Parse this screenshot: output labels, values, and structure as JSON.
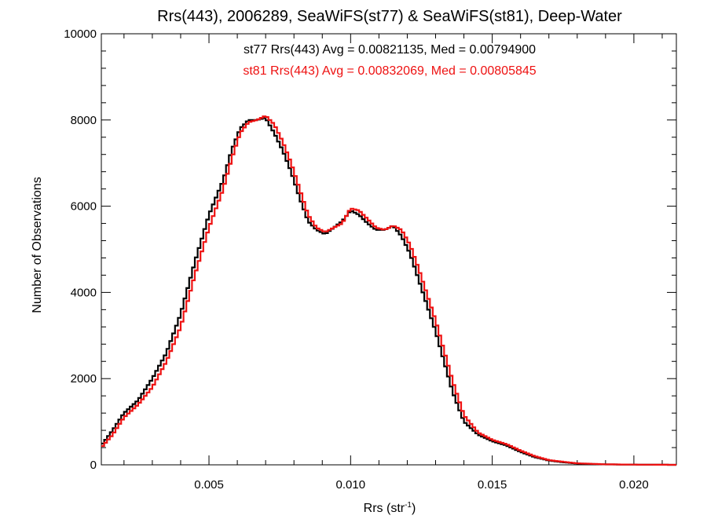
{
  "chart_data": {
    "type": "line",
    "step": true,
    "title": "Rrs(443), 2006289, SeaWiFS(st77) & SeaWiFS(st81), Deep-Water",
    "xlabel": "Rrs (str",
    "xlabel_sup": "-1",
    "xlabel_end": ")",
    "ylabel": "Number of Observations",
    "xlim": [
      0.0012,
      0.0215
    ],
    "ylim": [
      0,
      10000
    ],
    "x_ticks": [
      0.005,
      0.01,
      0.015,
      0.02
    ],
    "x_tick_labels": [
      "0.005",
      "0.010",
      "0.015",
      "0.020"
    ],
    "y_ticks": [
      0,
      2000,
      4000,
      6000,
      8000,
      10000
    ],
    "y_tick_labels": [
      "0",
      "2000",
      "4000",
      "6000",
      "8000",
      "10000"
    ],
    "annotations": [
      {
        "text": "st77 Rrs(443) Avg = 0.00821135, Med = 0.00794900",
        "color": "#000000"
      },
      {
        "text": "st81 Rrs(443) Avg = 0.00832069, Med = 0.00805845",
        "color": "#ee1111"
      }
    ],
    "series": [
      {
        "name": "st77",
        "color": "#000000",
        "x": [
          0.0012,
          0.0016,
          0.002,
          0.0025,
          0.003,
          0.0035,
          0.004,
          0.0045,
          0.005,
          0.0055,
          0.0058,
          0.0061,
          0.0064,
          0.0067,
          0.007,
          0.0073,
          0.0076,
          0.0079,
          0.0082,
          0.0085,
          0.0088,
          0.0091,
          0.0094,
          0.0097,
          0.01,
          0.0103,
          0.0106,
          0.0109,
          0.0112,
          0.0115,
          0.0118,
          0.0121,
          0.0124,
          0.0127,
          0.013,
          0.0133,
          0.0136,
          0.014,
          0.0145,
          0.015,
          0.0155,
          0.016,
          0.0165,
          0.017,
          0.0175,
          0.018,
          0.019,
          0.02,
          0.0215
        ],
        "y": [
          450,
          800,
          1200,
          1500,
          2000,
          2600,
          3500,
          4700,
          5800,
          6600,
          7300,
          7800,
          8000,
          8000,
          8050,
          7700,
          7300,
          6800,
          6200,
          5650,
          5450,
          5350,
          5500,
          5650,
          5900,
          5800,
          5600,
          5450,
          5450,
          5550,
          5300,
          4900,
          4300,
          3700,
          3100,
          2400,
          1700,
          1000,
          700,
          550,
          450,
          300,
          180,
          100,
          60,
          30,
          10,
          5,
          0
        ]
      },
      {
        "name": "st81",
        "color": "#ee1111",
        "x": [
          0.0012,
          0.0016,
          0.002,
          0.0025,
          0.003,
          0.0035,
          0.004,
          0.0045,
          0.005,
          0.0055,
          0.0058,
          0.0061,
          0.0064,
          0.0067,
          0.007,
          0.0073,
          0.0076,
          0.0079,
          0.0082,
          0.0085,
          0.0088,
          0.0091,
          0.0094,
          0.0097,
          0.01,
          0.0103,
          0.0106,
          0.0109,
          0.0112,
          0.0115,
          0.0118,
          0.0121,
          0.0124,
          0.0127,
          0.013,
          0.0133,
          0.0136,
          0.014,
          0.0145,
          0.015,
          0.0155,
          0.016,
          0.0165,
          0.017,
          0.0175,
          0.018,
          0.019,
          0.02,
          0.0215
        ],
        "y": [
          400,
          700,
          1100,
          1400,
          1800,
          2400,
          3200,
          4400,
          5500,
          6400,
          7100,
          7700,
          7950,
          8000,
          8100,
          7900,
          7500,
          7000,
          6400,
          5800,
          5500,
          5400,
          5500,
          5600,
          5950,
          5900,
          5700,
          5500,
          5450,
          5550,
          5450,
          5100,
          4550,
          3950,
          3350,
          2650,
          1950,
          1150,
          750,
          580,
          480,
          330,
          200,
          110,
          70,
          35,
          12,
          5,
          0
        ]
      }
    ]
  }
}
